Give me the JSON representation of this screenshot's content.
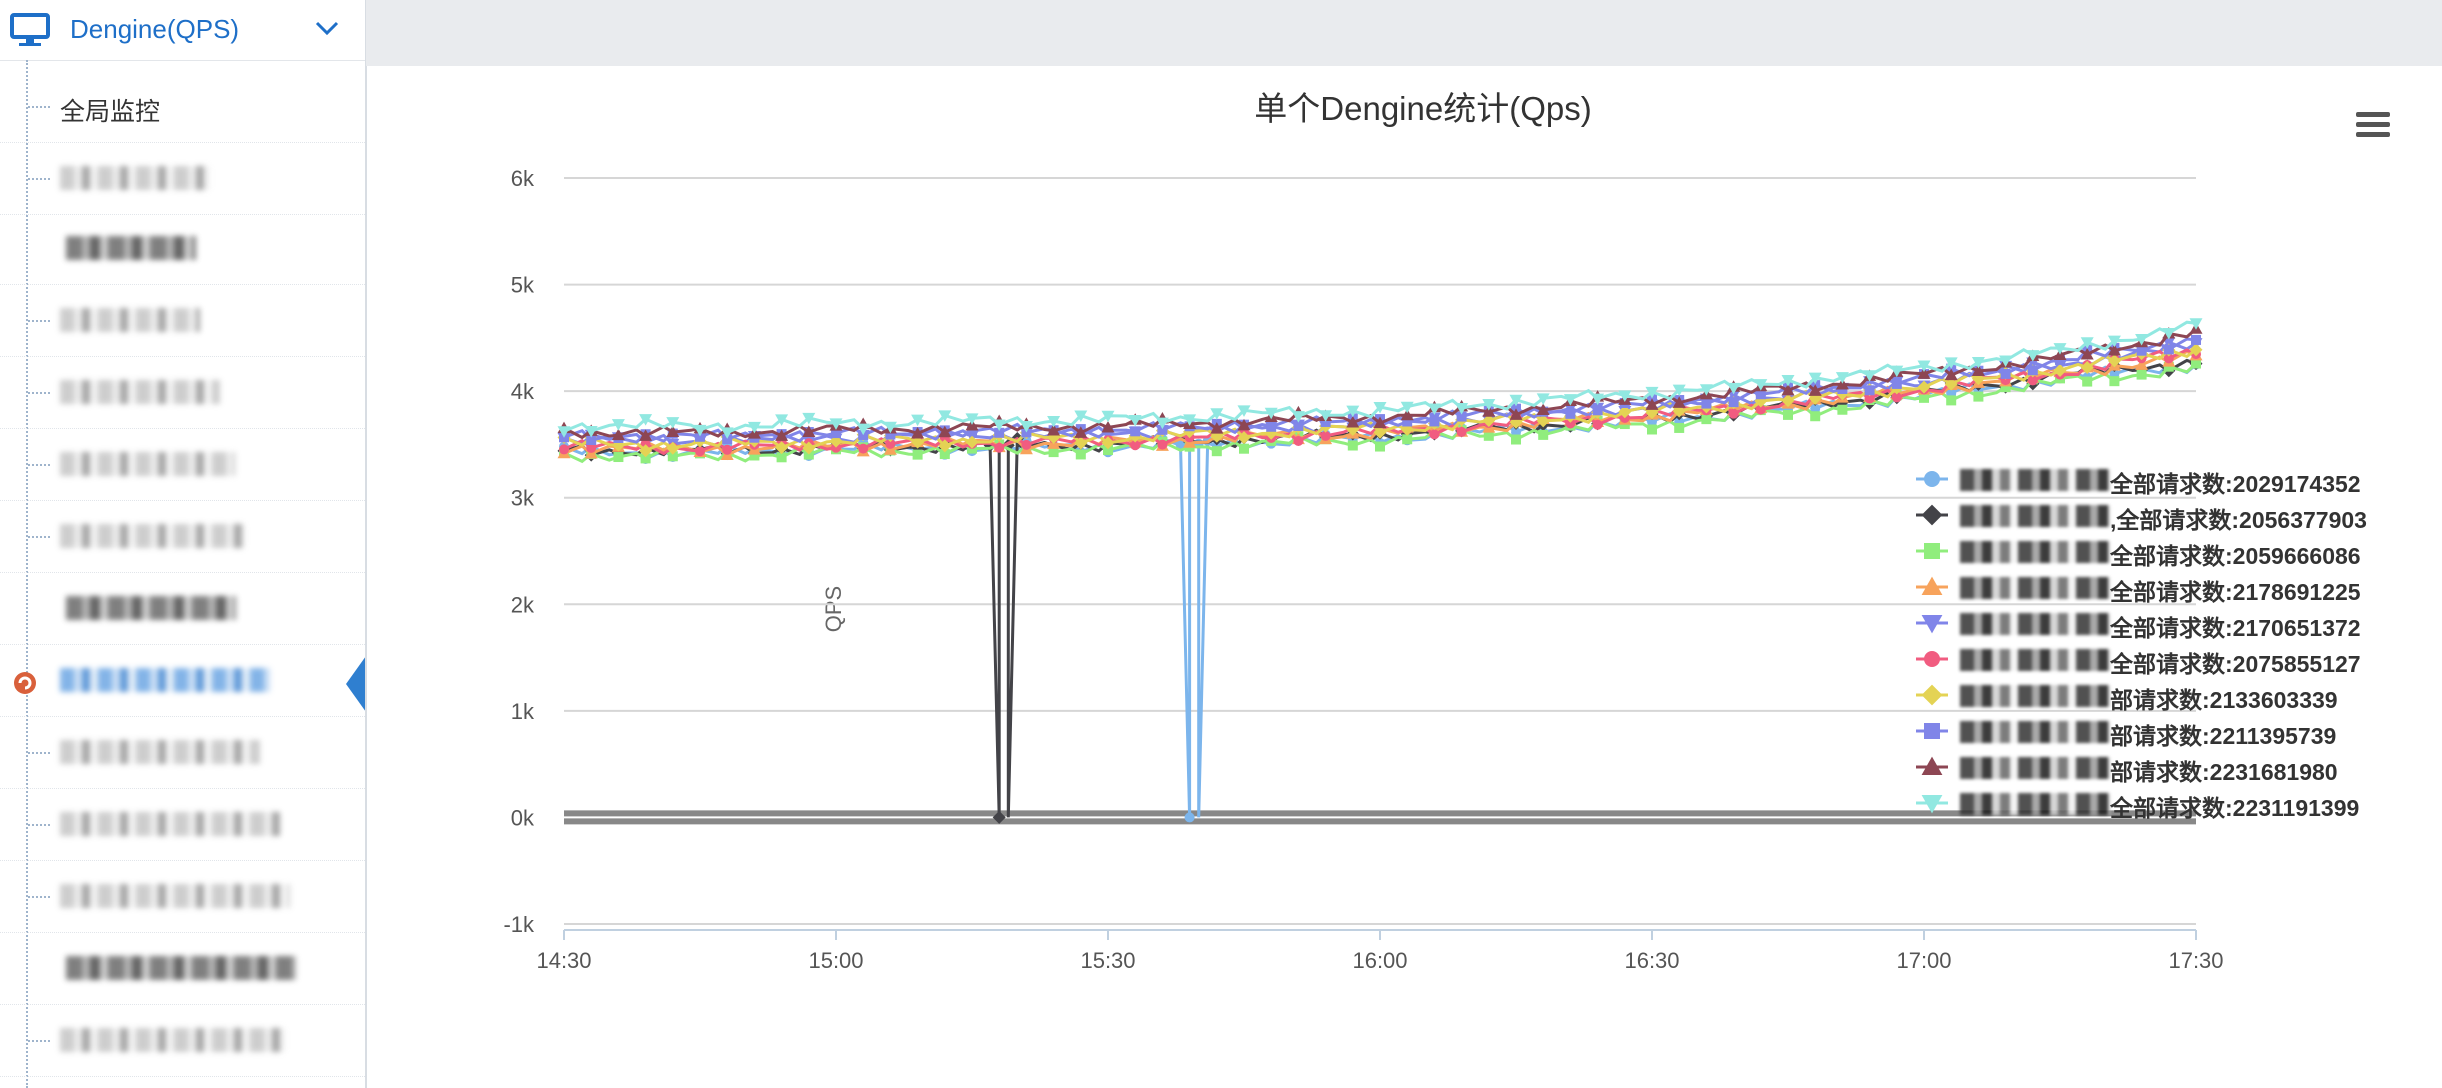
{
  "sidebar": {
    "title": "Dengine(QPS)",
    "items": [
      {
        "label": "全局监控"
      }
    ]
  },
  "chart_data": {
    "type": "line",
    "title": "单个Dengine统计(Qps)",
    "ylabel": "QPS",
    "ylim": [
      -1000,
      6000
    ],
    "y_ticks": [
      "-1k",
      "0k",
      "1k",
      "2k",
      "3k",
      "4k",
      "5k",
      "6k"
    ],
    "x_ticks": [
      "14:30",
      "15:00",
      "15:30",
      "16:00",
      "16:30",
      "17:00",
      "17:30"
    ],
    "xlim": [
      "14:30",
      "17:30"
    ],
    "legend_position": "right",
    "series": [
      {
        "label": "全部请求数:2029174352",
        "color": "#7cb5ec",
        "symbol": "circle",
        "values": [
          3430,
          3420,
          3460,
          3470,
          3480,
          3520,
          3560,
          3640,
          3720,
          3830,
          3960,
          4120,
          4250
        ]
      },
      {
        "label": ",全部请求数:2056377903",
        "color": "#434348",
        "symbol": "diamond",
        "values": [
          3450,
          3440,
          3470,
          3490,
          3500,
          3550,
          3590,
          3670,
          3750,
          3860,
          3990,
          4150,
          4280
        ]
      },
      {
        "label": "全部请求数:2059666086",
        "color": "#90ed7d",
        "symbol": "square",
        "values": [
          3400,
          3390,
          3430,
          3450,
          3460,
          3500,
          3540,
          3610,
          3690,
          3800,
          3930,
          4090,
          4220
        ]
      },
      {
        "label": "全部请求数:2178691225",
        "color": "#f7a35c",
        "symbol": "triangle",
        "values": [
          3470,
          3460,
          3490,
          3510,
          3520,
          3570,
          3610,
          3690,
          3770,
          3880,
          4010,
          4170,
          4330
        ]
      },
      {
        "label": "全部请求数:2170651372",
        "color": "#8085e9",
        "symbol": "triangle-down",
        "values": [
          3550,
          3540,
          3570,
          3590,
          3600,
          3650,
          3690,
          3770,
          3850,
          3960,
          4090,
          4250,
          4430
        ]
      },
      {
        "label": "全部请求数:2075855127",
        "color": "#f15c80",
        "symbol": "circle",
        "values": [
          3480,
          3470,
          3500,
          3520,
          3530,
          3580,
          3620,
          3700,
          3780,
          3890,
          4020,
          4180,
          4380
        ]
      },
      {
        "label": "部请求数:2133603339",
        "color": "#e4d354",
        "symbol": "diamond",
        "values": [
          3510,
          3500,
          3530,
          3550,
          3560,
          3610,
          3650,
          3730,
          3810,
          3920,
          4050,
          4210,
          4400
        ]
      },
      {
        "label": "部请求数:2211395739",
        "color": "#8085e8",
        "symbol": "square",
        "values": [
          3580,
          3570,
          3600,
          3620,
          3630,
          3680,
          3720,
          3800,
          3880,
          3990,
          4120,
          4280,
          4500
        ]
      },
      {
        "label": "部请求数:2231681980",
        "color": "#8d4653",
        "symbol": "triangle",
        "values": [
          3620,
          3610,
          3640,
          3660,
          3670,
          3720,
          3760,
          3840,
          3920,
          4030,
          4160,
          4320,
          4560
        ]
      },
      {
        "label": "全部请求数:2231191399",
        "color": "#91e8e1",
        "symbol": "triangle-down",
        "values": [
          3680,
          3670,
          3700,
          3720,
          3730,
          3780,
          3820,
          3900,
          3980,
          4090,
          4220,
          4380,
          4620
        ]
      }
    ],
    "x": [
      "14:30",
      "14:45",
      "15:00",
      "15:15",
      "15:30",
      "15:45",
      "16:00",
      "16:15",
      "16:30",
      "16:45",
      "17:00",
      "17:15",
      "17:30"
    ],
    "dropouts": [
      {
        "series": 1,
        "x": [
          "15:18",
          "15:19"
        ],
        "value": 0
      },
      {
        "series": 0,
        "x": [
          "15:39",
          "15:40"
        ],
        "value": 0
      }
    ]
  }
}
